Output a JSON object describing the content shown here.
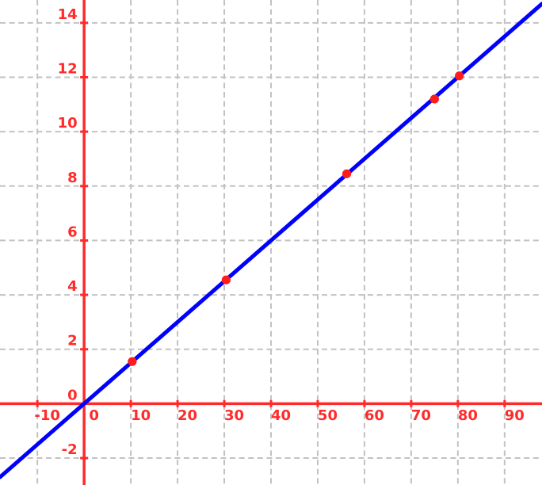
{
  "chart_data": {
    "type": "scatter",
    "title": "",
    "points": [
      {
        "x": 10.3,
        "y": 1.55
      },
      {
        "x": 30.4,
        "y": 4.55
      },
      {
        "x": 56.2,
        "y": 8.45
      },
      {
        "x": 75.0,
        "y": 11.2
      },
      {
        "x": 80.3,
        "y": 12.05
      }
    ],
    "trend_line": {
      "slope": 0.15,
      "intercept": 0
    },
    "axes": {
      "xlim": [
        -18,
        98
      ],
      "ylim": [
        -2.99,
        14.84
      ],
      "x_ticks": [
        -10,
        0,
        10,
        20,
        30,
        40,
        50,
        60,
        70,
        80,
        90
      ],
      "x_tick_labels": [
        "-10",
        "0",
        "10",
        "20",
        "30",
        "40",
        "50",
        "60",
        "70",
        "80",
        "90"
      ],
      "y_ticks": [
        -2,
        0,
        2,
        4,
        6,
        8,
        10,
        12,
        14
      ],
      "y_tick_labels": [
        "-2",
        "0",
        "2",
        "4",
        "6",
        "8",
        "10",
        "12",
        "14"
      ],
      "grid": "dashed",
      "legend": "none"
    },
    "colors": {
      "axis": "#ff2b2b",
      "tick_label": "#ff2b2b",
      "grid": "#c2c2c2",
      "trend_line": "#0000ff",
      "point": "#ff1c1c",
      "background": "#ffffff"
    }
  }
}
